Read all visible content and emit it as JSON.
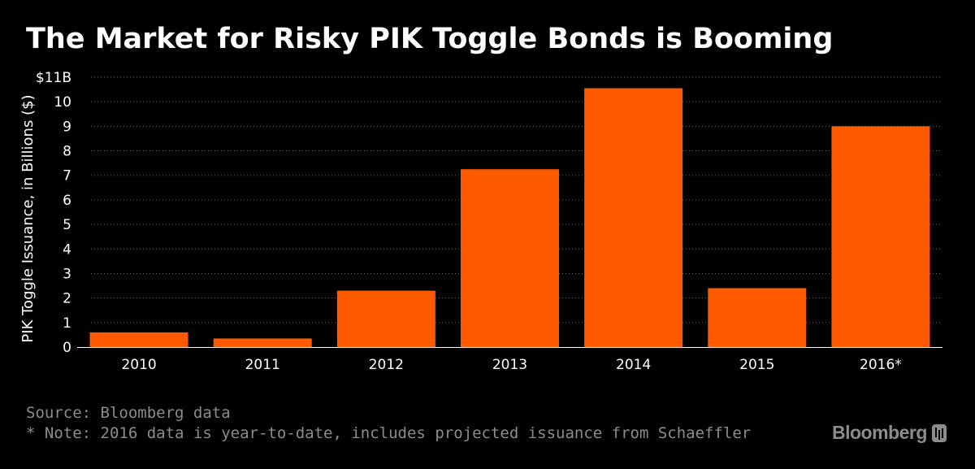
{
  "header": {
    "title": "The Market for Risky PIK Toggle Bonds is Booming"
  },
  "chart_data": {
    "type": "bar",
    "categories": [
      "2010",
      "2011",
      "2012",
      "2013",
      "2014",
      "2015",
      "2016*"
    ],
    "values": [
      0.6,
      0.35,
      2.3,
      7.25,
      10.55,
      2.4,
      9.0
    ],
    "ylabel": "PIK Toggle Issuance, in Billions ($)",
    "xlabel": "",
    "ylim": [
      0,
      11
    ],
    "yticks": [
      0,
      1,
      2,
      3,
      4,
      5,
      6,
      7,
      8,
      9,
      10,
      11
    ],
    "ytick_labels": [
      "0",
      "1",
      "2",
      "3",
      "4",
      "5",
      "6",
      "7",
      "8",
      "9",
      "10",
      "$11B"
    ],
    "grid": true,
    "legend": "none",
    "bar_color": "#ff5a00"
  },
  "footer": {
    "source": "Source: Bloomberg data",
    "note": "* Note: 2016 data is year-to-date, includes projected issuance from Schaeffler",
    "brand": "Bloomberg"
  },
  "colors": {
    "background": "#000000",
    "text": "#ffffff",
    "footer_text": "#8c8c8c",
    "gridline": "#666666"
  },
  "icons": {
    "brand_mark": "bloomberg-terminal-icon"
  }
}
